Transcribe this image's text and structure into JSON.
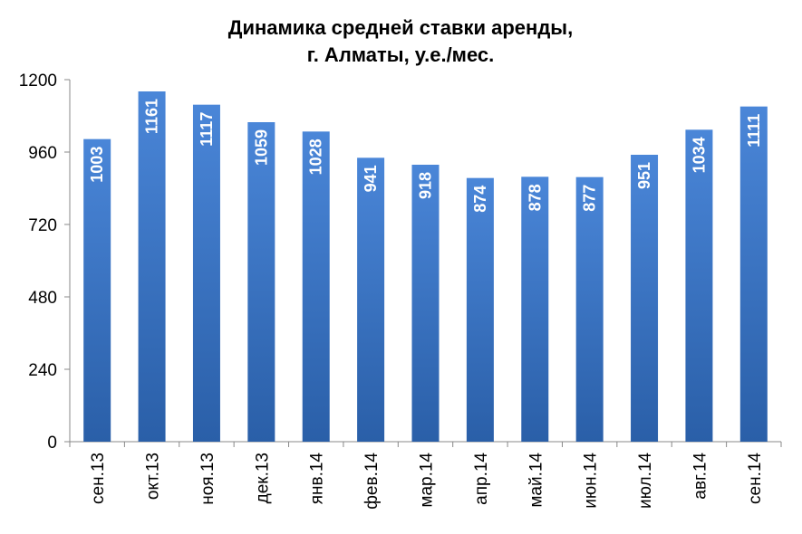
{
  "chart_data": {
    "type": "bar",
    "title_lines": [
      "Динамика средней ставки аренды,",
      "г. Алматы, у.е./мес."
    ],
    "categories": [
      "сен.13",
      "окт.13",
      "ноя.13",
      "дек.13",
      "янв.14",
      "фев.14",
      "мар.14",
      "апр.14",
      "май.14",
      "июн.14",
      "июл.14",
      "авг.14",
      "сен.14"
    ],
    "values": [
      1003,
      1161,
      1117,
      1059,
      1028,
      941,
      918,
      874,
      878,
      877,
      951,
      1034,
      1111
    ],
    "ylim": [
      0,
      1200
    ],
    "yticks": [
      0,
      240,
      480,
      720,
      960,
      1200
    ],
    "grid": false,
    "legend": "none",
    "bar_color_top": "#4a86d8",
    "bar_color_bottom": "#2a5fa8"
  }
}
